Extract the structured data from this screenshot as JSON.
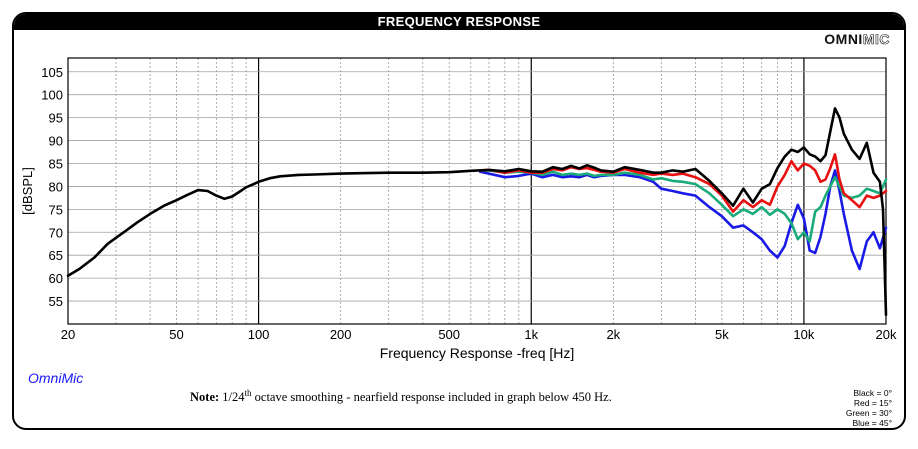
{
  "header": {
    "title": "FREQUENCY RESPONSE"
  },
  "brand": {
    "part1": "OMNI",
    "part2": "MIC"
  },
  "software_label": "OmniMic",
  "note": {
    "prefix": "Note:",
    "body_start": "1/24",
    "superscript": "th",
    "body_end": " octave smoothing - nearfield response included in graph below 450 Hz."
  },
  "legend": [
    {
      "text": "Black = 0°",
      "color": "#000000"
    },
    {
      "text": "Red = 15°",
      "color": "#e81010"
    },
    {
      "text": "Green = 30°",
      "color": "#1aab7a"
    },
    {
      "text": "Blue = 45°",
      "color": "#1a1ae6"
    }
  ],
  "chart_data": {
    "type": "line",
    "title": "FREQUENCY RESPONSE",
    "xlabel": "Frequency Response -freq [Hz]",
    "ylabel": "[dBSPL]",
    "xscale": "log",
    "xlim": [
      20,
      20000
    ],
    "ylim": [
      50,
      108
    ],
    "x_ticks": [
      20,
      50,
      100,
      200,
      500,
      1000,
      2000,
      5000,
      10000,
      20000
    ],
    "x_tick_labels": [
      "20",
      "50",
      "100",
      "200",
      "500",
      "1k",
      "2k",
      "5k",
      "10k",
      "20k"
    ],
    "y_ticks": [
      55,
      60,
      65,
      70,
      75,
      80,
      85,
      90,
      95,
      100,
      105
    ],
    "y_tick_labels": [
      "55",
      "60",
      "65",
      "70",
      "75",
      "80",
      "85",
      "90",
      "95",
      "100",
      "105"
    ],
    "grid": true,
    "series": [
      {
        "name": "Black = 0°",
        "color": "#000000",
        "x": [
          20,
          22,
          25,
          28,
          32,
          36,
          40,
          45,
          50,
          55,
          60,
          65,
          70,
          75,
          80,
          85,
          90,
          95,
          100,
          110,
          120,
          140,
          160,
          200,
          250,
          300,
          400,
          500,
          600,
          700,
          800,
          900,
          1000,
          1100,
          1200,
          1300,
          1400,
          1500,
          1600,
          1700,
          1800,
          2000,
          2200,
          2500,
          2800,
          3000,
          3300,
          3600,
          4000,
          4500,
          5000,
          5500,
          6000,
          6500,
          7000,
          7500,
          8000,
          8500,
          9000,
          9500,
          10000,
          10500,
          11000,
          11500,
          12000,
          12500,
          13000,
          13500,
          14000,
          15000,
          16000,
          17000,
          18000,
          19000,
          19500,
          20000
        ],
        "y": [
          60.5,
          62.0,
          64.5,
          67.5,
          70.0,
          72.2,
          74.0,
          75.8,
          77.0,
          78.2,
          79.2,
          79.0,
          78.0,
          77.3,
          77.8,
          78.8,
          79.8,
          80.4,
          81.0,
          81.8,
          82.2,
          82.5,
          82.6,
          82.8,
          82.9,
          83.0,
          83.0,
          83.1,
          83.4,
          83.6,
          83.3,
          83.8,
          83.3,
          83.2,
          84.2,
          83.8,
          84.5,
          83.9,
          84.6,
          84.1,
          83.5,
          83.2,
          84.2,
          83.6,
          83.0,
          83.0,
          83.5,
          83.2,
          83.8,
          81.2,
          78.5,
          75.8,
          79.5,
          76.5,
          79.5,
          80.5,
          84.0,
          86.5,
          88.0,
          87.5,
          88.5,
          87.0,
          86.5,
          85.5,
          86.8,
          92.0,
          97.0,
          95.0,
          91.5,
          88.0,
          86.0,
          89.5,
          83.0,
          81.0,
          75.0,
          52.0
        ]
      },
      {
        "name": "Red = 15°",
        "color": "#e81010",
        "x": [
          650,
          700,
          800,
          900,
          1000,
          1100,
          1200,
          1300,
          1400,
          1500,
          1600,
          1700,
          1800,
          2000,
          2200,
          2500,
          2800,
          3000,
          3300,
          3600,
          4000,
          4500,
          5000,
          5500,
          6000,
          6500,
          7000,
          7500,
          8000,
          8500,
          9000,
          9500,
          10000,
          10500,
          11000,
          11500,
          12000,
          12500,
          13000,
          13500,
          14000,
          15000,
          16000,
          17000,
          18000,
          19000,
          20000
        ],
        "y": [
          83.5,
          83.6,
          83.0,
          83.5,
          83.0,
          83.0,
          83.8,
          83.5,
          84.2,
          83.8,
          84.0,
          83.6,
          83.2,
          83.0,
          83.8,
          83.0,
          82.5,
          82.8,
          82.5,
          82.8,
          82.0,
          80.5,
          78.0,
          74.5,
          77.0,
          75.5,
          77.0,
          76.0,
          80.0,
          82.5,
          85.5,
          83.5,
          85.0,
          84.5,
          83.5,
          81.0,
          81.5,
          84.0,
          87.0,
          81.5,
          78.5,
          77.0,
          75.5,
          78.0,
          77.5,
          78.0,
          79.0
        ]
      },
      {
        "name": "Green = 30°",
        "color": "#1aab7a",
        "x": [
          650,
          700,
          800,
          900,
          1000,
          1100,
          1200,
          1300,
          1400,
          1500,
          1600,
          1700,
          1800,
          2000,
          2200,
          2500,
          2800,
          3000,
          3300,
          3600,
          4000,
          4500,
          5000,
          5500,
          6000,
          6500,
          7000,
          7500,
          8000,
          8500,
          9000,
          9500,
          10000,
          10500,
          11000,
          11500,
          12000,
          12500,
          13000,
          13500,
          14000,
          15000,
          16000,
          17000,
          18000,
          19000,
          20000
        ],
        "y": [
          83.5,
          83.5,
          83.0,
          83.2,
          83.0,
          82.5,
          83.2,
          82.5,
          82.8,
          82.5,
          82.8,
          82.3,
          82.5,
          82.5,
          83.0,
          82.5,
          81.5,
          81.8,
          81.2,
          81.0,
          80.5,
          78.5,
          76.0,
          73.5,
          75.0,
          74.0,
          75.5,
          73.8,
          75.0,
          74.0,
          72.0,
          68.5,
          70.0,
          68.0,
          74.5,
          75.5,
          78.0,
          80.0,
          82.0,
          80.0,
          78.0,
          77.5,
          78.0,
          79.5,
          79.0,
          78.5,
          81.5
        ]
      },
      {
        "name": "Blue = 45°",
        "color": "#1a1ae6",
        "x": [
          650,
          700,
          800,
          900,
          1000,
          1100,
          1200,
          1300,
          1400,
          1500,
          1600,
          1700,
          1800,
          2000,
          2200,
          2500,
          2800,
          3000,
          3300,
          3600,
          4000,
          4500,
          5000,
          5500,
          6000,
          6500,
          7000,
          7500,
          8000,
          8500,
          9000,
          9500,
          10000,
          10500,
          11000,
          11500,
          12000,
          12500,
          13000,
          13500,
          14000,
          15000,
          16000,
          17000,
          18000,
          19000,
          20000
        ],
        "y": [
          83.2,
          82.8,
          82.0,
          82.3,
          82.8,
          82.0,
          82.5,
          82.0,
          82.2,
          82.0,
          82.5,
          82.0,
          82.3,
          82.5,
          82.5,
          82.0,
          81.0,
          79.5,
          79.0,
          78.5,
          78.0,
          75.5,
          73.5,
          71.0,
          71.5,
          70.0,
          68.5,
          66.0,
          64.5,
          67.0,
          72.0,
          76.0,
          73.0,
          66.0,
          65.5,
          69.0,
          74.0,
          80.0,
          83.5,
          79.0,
          74.0,
          66.0,
          62.0,
          68.0,
          70.0,
          66.5,
          71.0
        ]
      }
    ]
  }
}
